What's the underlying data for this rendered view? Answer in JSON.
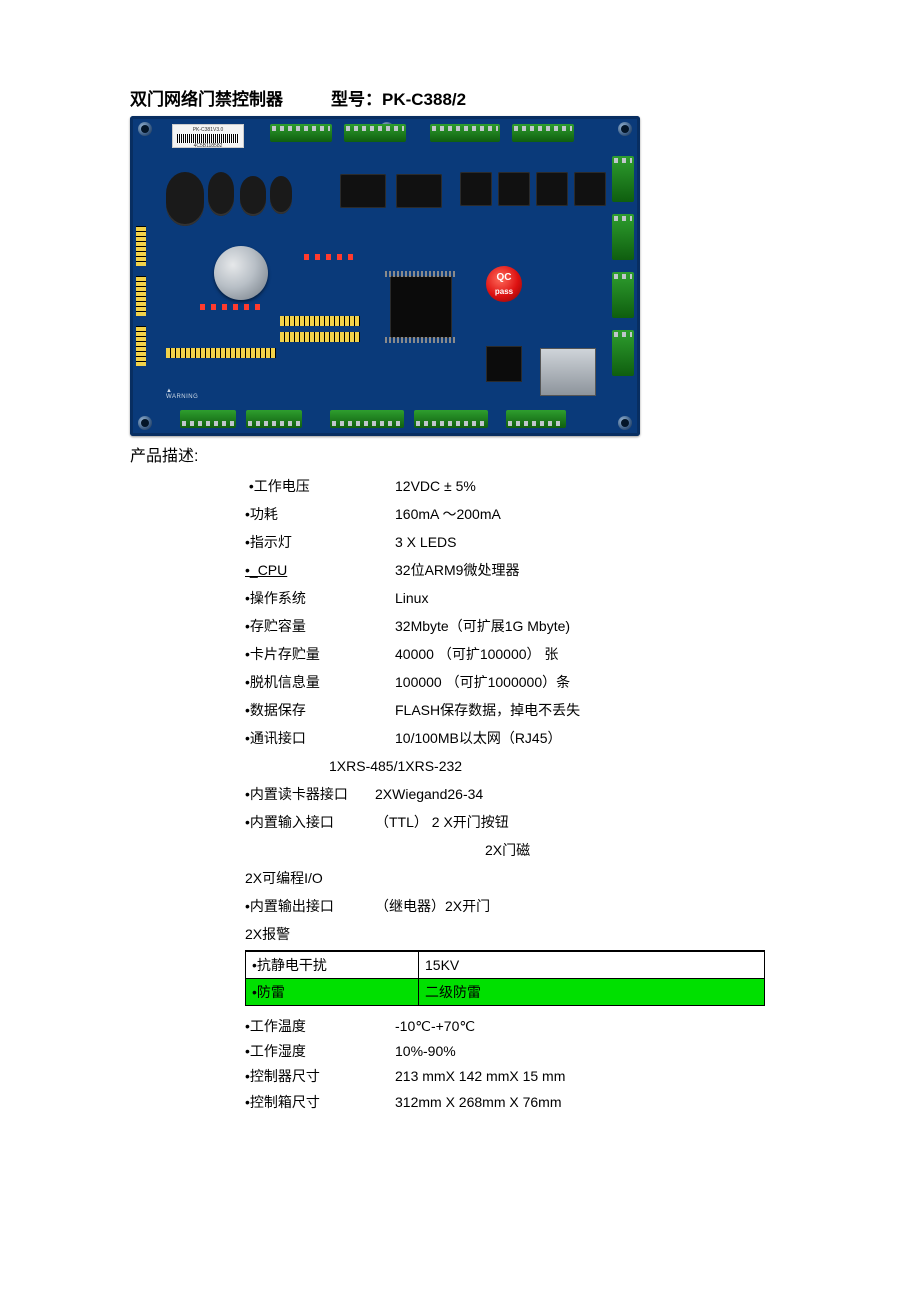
{
  "title": {
    "product_name": "双门网络门禁控制器",
    "model_label": "型号：",
    "model_value": "PK-C388/2"
  },
  "pcb": {
    "bg_color": "#0a3a7a",
    "sticker_model": "PK-C381V3.0",
    "sticker_serial": "4C5B118582",
    "qc_text_top": "QC",
    "qc_text_bottom": "pass"
  },
  "desc_heading": "产品描述:",
  "specs": [
    {
      "label": "•工作电压",
      "value": "12VDC ± 5%",
      "label_lead_space": true
    },
    {
      "label": "•功耗",
      "value": "160mA ～200mA"
    },
    {
      "label": "•指示灯",
      "value": "3 X  LEDS"
    },
    {
      "label": "•_CPU",
      "value": "32位ARM9微处理器",
      "underline": true
    },
    {
      "label": "•操作系统",
      "value": "Linux"
    },
    {
      "label": "•存贮容量",
      "value": "32Mbyte（可扩展1G Mbyte)"
    },
    {
      "label": "•卡片存贮量",
      "value": "40000 （可扩100000） 张"
    },
    {
      "label": "•脱机信息量",
      "value": "100000 （可扩1000000）条"
    },
    {
      "label": "•数据保存",
      "value": "FLASH保存数据，掉电不丢失"
    },
    {
      "label": "•通讯接口",
      "value": "10/100MB以太网（RJ45）"
    },
    {
      "sub": true,
      "value": "1XRS-485/1XRS-232"
    },
    {
      "label": "•内置读卡器接口",
      "inline_value": "2XWiegand26-34"
    },
    {
      "label": "•内置输入接口",
      "inline_value": "（TTL） 2 X开门按钮"
    },
    {
      "sub_center": true,
      "value": "2X门磁"
    },
    {
      "flush": true,
      "value": "2X可编程I/O"
    },
    {
      "label": "•内置输出接口",
      "inline_value": "（继电器）2X开门"
    },
    {
      "flush": true,
      "value": "2X报警"
    }
  ],
  "table_rows": [
    {
      "label": "•抗静电干扰",
      "value": "15KV",
      "green": false
    },
    {
      "label": "•防雷",
      "value": "二级防雷",
      "green": true
    }
  ],
  "specs2": [
    {
      "label": "•工作温度",
      "value": "-10℃-+70℃"
    },
    {
      "label": "•工作湿度",
      "value": "10%-90%"
    },
    {
      "label": "•控制器尺寸",
      "value": "213 mmX  142 mmX  15 mm"
    },
    {
      "label": "•控制箱尺寸",
      "value": " 312mm X  268mm X  76mm"
    }
  ]
}
